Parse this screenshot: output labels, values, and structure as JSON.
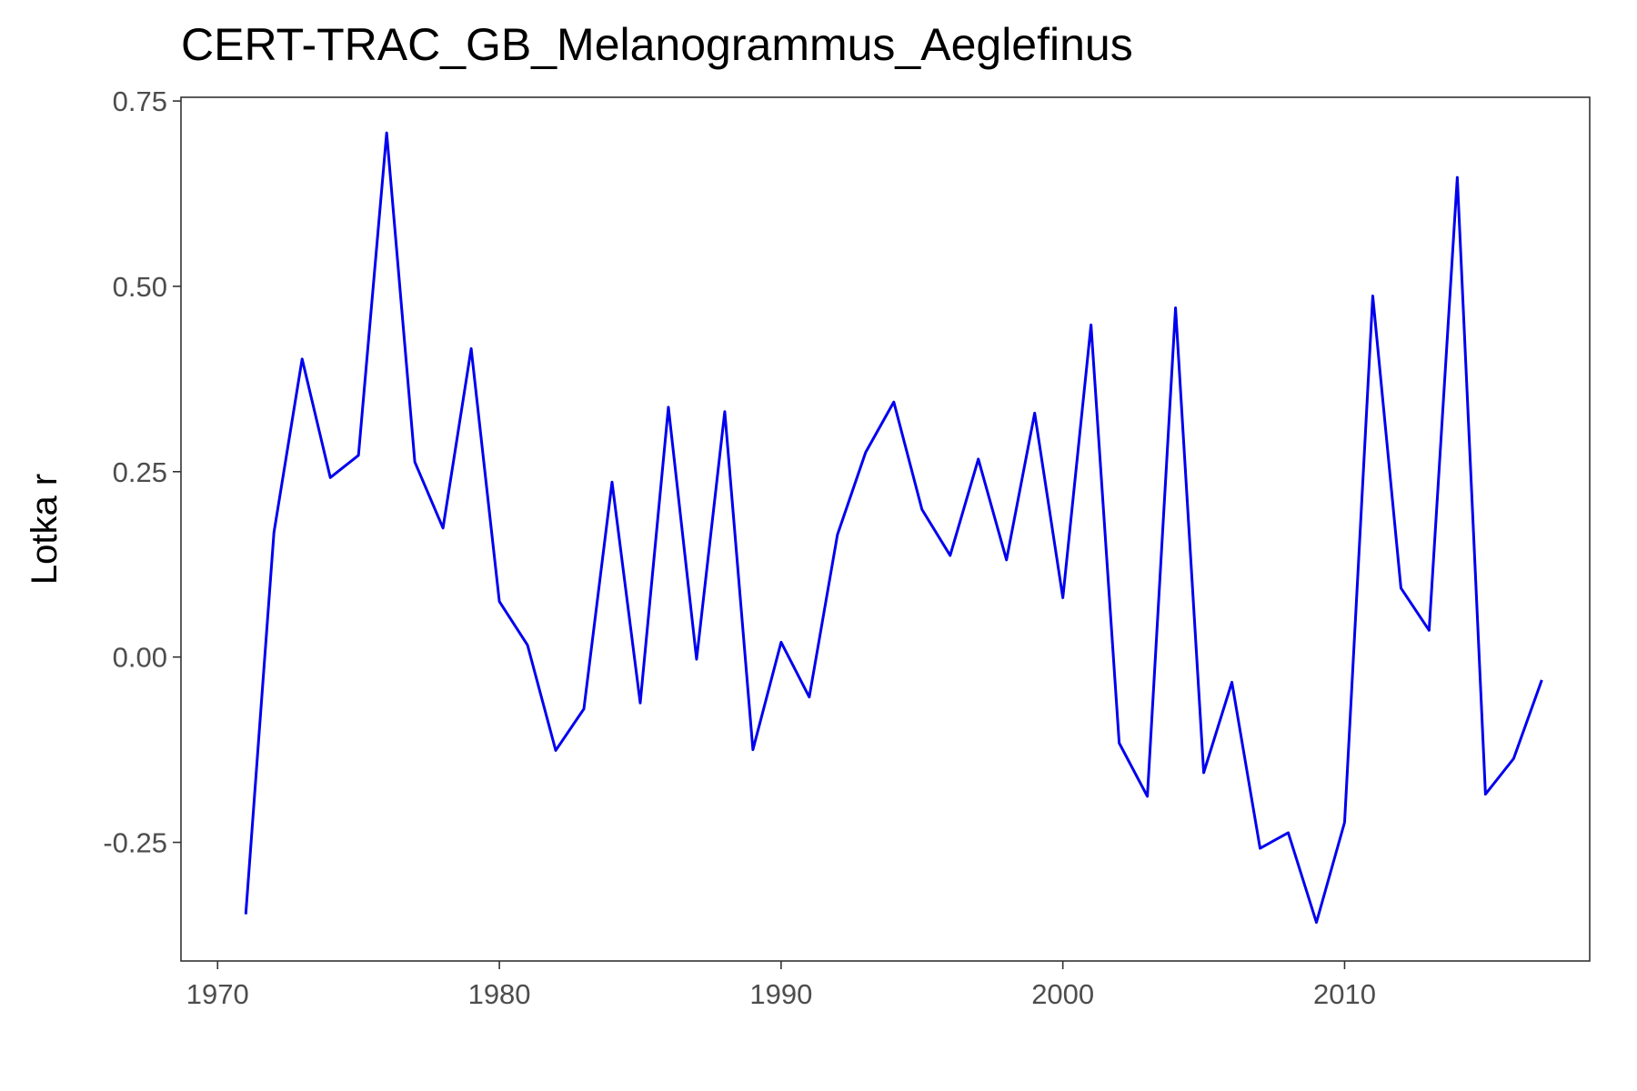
{
  "chart_data": {
    "type": "line",
    "title": "CERT-TRAC_GB_Melanogrammus_Aeglefinus",
    "xlabel": "",
    "ylabel": "Lotka r",
    "xlim": [
      1968.7,
      2018.7
    ],
    "ylim": [
      -0.41,
      0.755
    ],
    "x_ticks": [
      1970,
      1980,
      1990,
      2000,
      2010
    ],
    "x_tick_labels": [
      "1970",
      "1980",
      "1990",
      "2000",
      "2010"
    ],
    "y_ticks": [
      -0.25,
      0,
      0.25,
      0.5,
      0.75
    ],
    "y_tick_labels": [
      "-0.25",
      "0.00",
      "0.25",
      "0.50",
      "0.75"
    ],
    "grid": false,
    "legend": "none",
    "line_color": "#0000ee",
    "series": [
      {
        "x": [
          1971,
          1972,
          1973,
          1974,
          1975,
          1976,
          1977,
          1978,
          1979,
          1980,
          1981,
          1982,
          1983,
          1984,
          1985,
          1986,
          1987,
          1988,
          1989,
          1990,
          1991,
          1992,
          1993,
          1994,
          1995,
          1996,
          1997,
          1998,
          1999,
          2000,
          2001,
          2002,
          2003,
          2004,
          2005,
          2006,
          2007,
          2008,
          2009,
          2010,
          2011,
          2012,
          2013,
          2014,
          2015,
          2016,
          2017
        ],
        "values": [
          -0.347,
          0.168,
          0.402,
          0.242,
          0.272,
          0.707,
          0.263,
          0.174,
          0.416,
          0.075,
          0.016,
          -0.126,
          -0.07,
          0.236,
          -0.062,
          0.337,
          -0.003,
          0.331,
          -0.125,
          0.02,
          -0.054,
          0.165,
          0.276,
          0.344,
          0.199,
          0.137,
          0.267,
          0.131,
          0.329,
          0.08,
          0.448,
          -0.116,
          -0.188,
          0.471,
          -0.156,
          -0.034,
          -0.258,
          -0.237,
          -0.358,
          -0.223,
          0.487,
          0.093,
          0.036,
          0.647,
          -0.185,
          -0.137,
          -0.031
        ]
      }
    ]
  }
}
